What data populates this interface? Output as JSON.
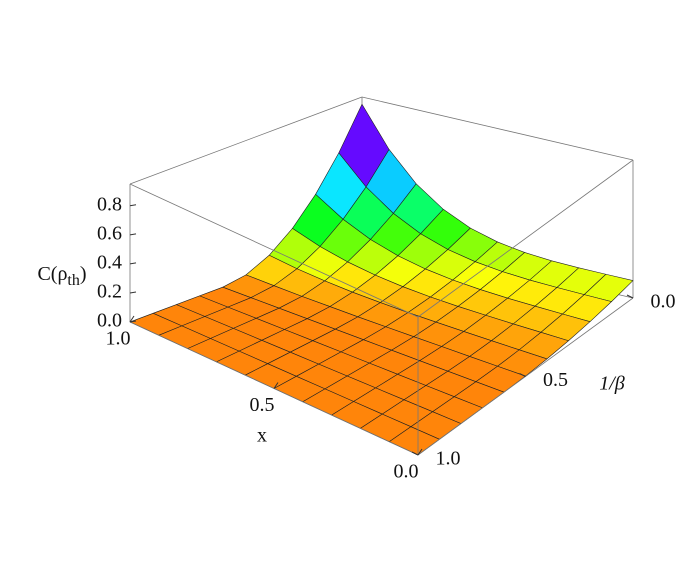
{
  "chart_data": {
    "type": "surface",
    "xlabel": "x",
    "ylabel": "1/β",
    "zlabel": {
      "main": "C(ρ",
      "sub": "th",
      "end": ")"
    },
    "x": [
      0,
      0.1,
      0.2,
      0.3,
      0.4,
      0.5,
      0.6,
      0.7,
      0.8,
      0.9,
      1
    ],
    "y": [
      0,
      0.1,
      0.2,
      0.3,
      0.4,
      0.5,
      0.6,
      0.7,
      0.8,
      0.9,
      1
    ],
    "z": [
      [
        0.12,
        0.12,
        0.121,
        0.126,
        0.14,
        0.169,
        0.221,
        0.307,
        0.439,
        0.632,
        0.9
      ],
      [
        0.083,
        0.083,
        0.084,
        0.087,
        0.097,
        0.117,
        0.153,
        0.213,
        0.305,
        0.439,
        0.625
      ],
      [
        0.053,
        0.053,
        0.054,
        0.056,
        0.062,
        0.075,
        0.098,
        0.136,
        0.195,
        0.281,
        0.4
      ],
      [
        0.03,
        0.03,
        0.03,
        0.032,
        0.035,
        0.042,
        0.055,
        0.077,
        0.11,
        0.158,
        0.225
      ],
      [
        0.013,
        0.013,
        0.013,
        0.014,
        0.016,
        0.019,
        0.025,
        0.034,
        0.049,
        0.07,
        0.1
      ],
      [
        0.003,
        0.003,
        0.003,
        0.004,
        0.004,
        0.005,
        0.006,
        0.009,
        0.012,
        0.018,
        0.025
      ],
      [
        0,
        0,
        0,
        0,
        0,
        0,
        0,
        0,
        0,
        0,
        0
      ],
      [
        0,
        0,
        0,
        0,
        0,
        0,
        0,
        0,
        0,
        0,
        0
      ],
      [
        0,
        0,
        0,
        0,
        0,
        0,
        0,
        0,
        0,
        0,
        0
      ],
      [
        0,
        0,
        0,
        0,
        0,
        0,
        0,
        0,
        0,
        0,
        0
      ],
      [
        0,
        0,
        0,
        0,
        0,
        0,
        0,
        0,
        0,
        0,
        0
      ]
    ],
    "xlim": [
      0,
      1
    ],
    "ylim": [
      0,
      1
    ],
    "zlim": [
      0,
      0.95
    ],
    "xticks": [
      {
        "value": 1,
        "label": "1.0"
      },
      0.5,
      {
        "value": 0,
        "label": "0.0"
      }
    ],
    "yticks": [
      {
        "value": 0,
        "label": "0.0"
      },
      0.5,
      {
        "value": 1,
        "label": "1.0"
      }
    ],
    "zticks": [
      {
        "value": 0,
        "label": "0.0"
      },
      0.2,
      0.4,
      0.6,
      0.8
    ]
  }
}
